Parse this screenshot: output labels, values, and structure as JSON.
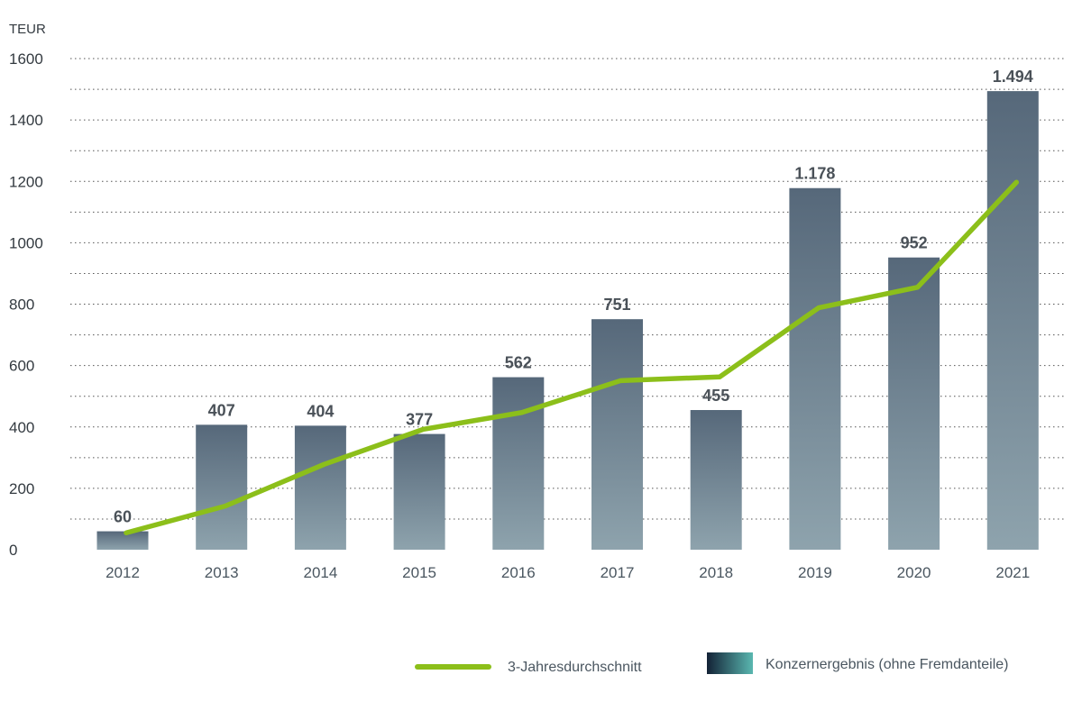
{
  "chart_data": {
    "type": "bar",
    "unit_label": "TEUR",
    "categories": [
      "2012",
      "2013",
      "2014",
      "2015",
      "2016",
      "2017",
      "2018",
      "2019",
      "2020",
      "2021"
    ],
    "series": [
      {
        "name": "Konzernergebnis (ohne Fremdanteile)",
        "type": "bar",
        "values": [
          60,
          407,
          404,
          377,
          562,
          751,
          455,
          1178,
          952,
          1494
        ],
        "labels": [
          "60",
          "407",
          "404",
          "377",
          "562",
          "751",
          "455",
          "1.178",
          "952",
          "1.494"
        ],
        "color_top": "#56687a",
        "color_bottom": "#8ea3ad"
      },
      {
        "name": "3-Jahresdurchschnitt",
        "type": "line",
        "values": [
          55,
          142,
          278,
          392,
          447,
          551,
          563,
          788,
          855,
          1197
        ],
        "color": "#8cbf1a"
      }
    ],
    "ylim": [
      0,
      1600
    ],
    "yticks": [
      "0",
      "200",
      "400",
      "600",
      "800",
      "1000",
      "1200",
      "1400",
      "1600"
    ],
    "grid": "dotted-horizontal",
    "legend_position": "bottom-right",
    "legend_bar_colors": [
      "#132236",
      "#5ab7b0"
    ]
  }
}
